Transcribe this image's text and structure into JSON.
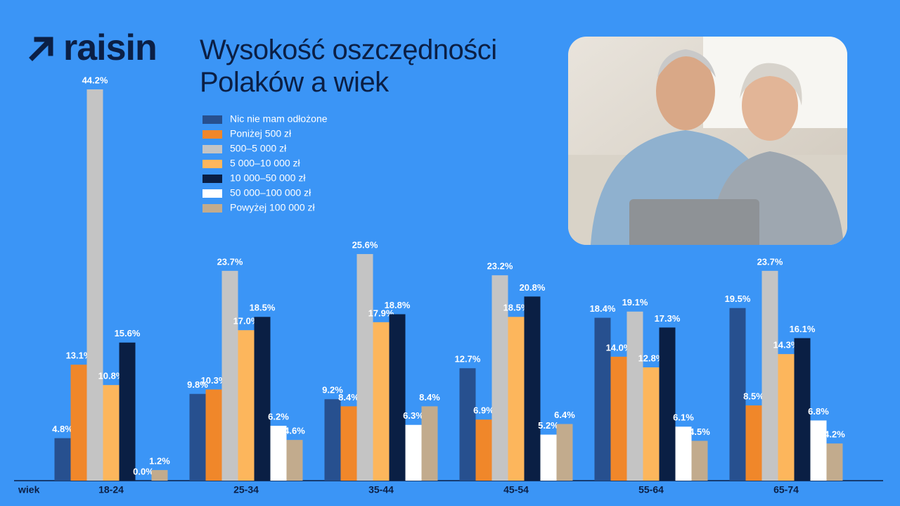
{
  "logo": "raisin",
  "chart_data": {
    "type": "bar",
    "title": "Wysokość oszczędności Polaków a wiek",
    "x_label": "wiek",
    "categories": [
      "18-24",
      "25-34",
      "35-44",
      "45-54",
      "55-64",
      "65-74"
    ],
    "series": [
      {
        "name": "Nic nie mam odłożone",
        "color": "#27508f",
        "values": [
          4.8,
          9.8,
          9.2,
          12.7,
          18.4,
          19.5
        ],
        "value_labels": [
          "4.8%",
          "9.8%",
          "9.2%",
          "12.7%",
          "18.4%",
          "19.5%"
        ]
      },
      {
        "name": "Poniżej 500 zł",
        "color": "#f0872a",
        "values": [
          13.1,
          10.3,
          8.4,
          6.9,
          14.0,
          8.5
        ],
        "value_labels": [
          "13.1%",
          "10.3%",
          "8.4%",
          "6.9%",
          "14.0%",
          "8.5%"
        ]
      },
      {
        "name": "500–5 000 zł",
        "color": "#c4c4c4",
        "values": [
          44.2,
          23.7,
          25.6,
          23.2,
          19.1,
          23.7
        ],
        "value_labels": [
          "44.2%",
          "23.7%",
          "25.6%",
          "23.2%",
          "19.1%",
          "23.7%"
        ]
      },
      {
        "name": "5 000–10 000 zł",
        "color": "#fdb65c",
        "values": [
          10.8,
          17.0,
          17.9,
          18.5,
          12.8,
          14.3
        ],
        "value_labels": [
          "10.8%",
          "17.0%",
          "17.9%",
          "18.5%",
          "12.8%",
          "14.3%"
        ]
      },
      {
        "name": "10 000–50 000 zł",
        "color": "#0a1f44",
        "values": [
          15.6,
          18.5,
          18.8,
          20.8,
          17.3,
          16.1
        ],
        "value_labels": [
          "15.6%",
          "18.5%",
          "18.8%",
          "20.8%",
          "17.3%",
          "16.1%"
        ]
      },
      {
        "name": "50 000–100 000 zł",
        "color": "#ffffff",
        "values": [
          0.0,
          6.2,
          6.3,
          5.2,
          6.1,
          6.8
        ],
        "value_labels": [
          "0.0%",
          "6.2%",
          "6.3%",
          "5.2%",
          "6.1%",
          "6.8%"
        ]
      },
      {
        "name": "Powyżej 100 000 zł",
        "color": "#c2ab8d",
        "values": [
          1.2,
          4.6,
          8.4,
          6.4,
          4.5,
          4.2
        ],
        "value_labels": [
          "1.2%",
          "4.6%",
          "8.4%",
          "6.4%",
          "4.5%",
          "4.2%"
        ]
      }
    ]
  }
}
